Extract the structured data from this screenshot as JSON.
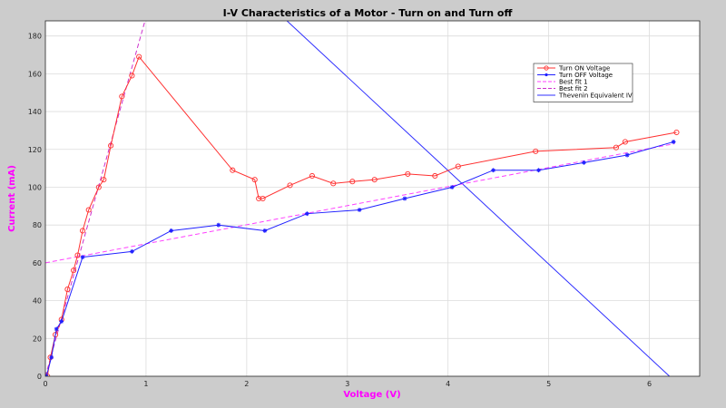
{
  "chart_data": {
    "type": "line",
    "title": "I-V Characteristics of a Motor - Turn on and Turn off",
    "xlabel": "Voltage (V)",
    "ylabel": "Current (mA)",
    "xlim": [
      0,
      6.5
    ],
    "ylim": [
      0,
      188
    ],
    "xticks": [
      0,
      1,
      2,
      3,
      4,
      5,
      6
    ],
    "yticks": [
      0,
      20,
      40,
      60,
      80,
      100,
      120,
      140,
      160,
      180
    ],
    "grid": true,
    "legend_position": "top-right",
    "series": [
      {
        "name": "Turn ON Voltage",
        "style": "solid-circle",
        "color": "#ff3030",
        "x": [
          0.02,
          0.05,
          0.1,
          0.16,
          0.22,
          0.28,
          0.32,
          0.37,
          0.43,
          0.53,
          0.58,
          0.65,
          0.76,
          0.86,
          0.93,
          1.86,
          2.08,
          2.12,
          2.16,
          2.43,
          2.65,
          2.86,
          3.05,
          3.27,
          3.6,
          3.87,
          4.1,
          4.87,
          5.67,
          5.76,
          6.27
        ],
        "y": [
          0,
          10,
          22,
          30,
          46,
          56,
          64,
          77,
          88,
          100,
          104,
          122,
          148,
          159,
          169,
          109,
          104,
          94,
          94,
          101,
          106,
          102,
          103,
          104,
          107,
          106,
          111,
          119,
          121,
          124,
          129
        ]
      },
      {
        "name": "Turn OFF Voltage",
        "style": "solid-star",
        "color": "#2020ff",
        "x": [
          0.01,
          0.06,
          0.11,
          0.16,
          0.37,
          0.86,
          1.25,
          1.72,
          2.18,
          2.6,
          3.12,
          3.57,
          4.04,
          4.45,
          4.9,
          5.35,
          5.78,
          6.24
        ],
        "y": [
          0,
          10,
          25,
          29,
          63,
          66,
          77,
          80,
          77,
          86,
          88,
          94,
          100,
          109,
          109,
          113,
          117,
          124
        ]
      },
      {
        "name": "Best fit 1",
        "style": "dashed",
        "color": "#ff40ff",
        "x": [
          0.0,
          6.25
        ],
        "y": [
          60,
          123
        ]
      },
      {
        "name": "Best fit 2",
        "style": "dashed",
        "color": "#cc30cc",
        "x": [
          0.0,
          1.0
        ],
        "y": [
          0,
          190
        ]
      },
      {
        "name": "Thevenin Equivalent IV",
        "style": "solid",
        "color": "#3030ff",
        "x": [
          2.4,
          6.2
        ],
        "y": [
          188,
          0
        ]
      }
    ]
  }
}
